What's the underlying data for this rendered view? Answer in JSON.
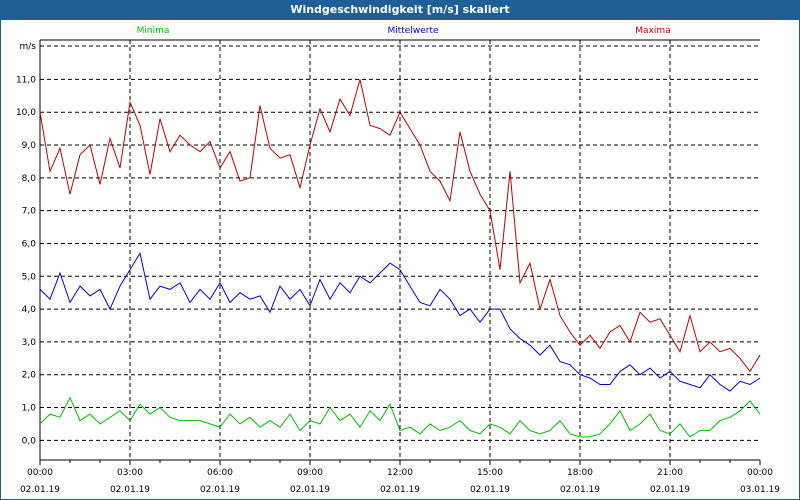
{
  "window": {
    "title": "Windgeschwindigkeit [m/s] skaliert"
  },
  "chart_data": {
    "type": "line",
    "title": "Windgeschwindigkeit [m/s] skaliert",
    "ylabel": "m/s",
    "ylim": [
      -0.6,
      12.2
    ],
    "yticks": [
      0,
      1,
      2,
      3,
      4,
      5,
      6,
      7,
      8,
      9,
      10,
      11
    ],
    "ytick_labels": [
      "0,0",
      "1,0",
      "2,0",
      "3,0",
      "4,0",
      "5,0",
      "6,0",
      "7,0",
      "8,0",
      "9,0",
      "10,0",
      "11,0"
    ],
    "xlim_hours": [
      0,
      24
    ],
    "xticks": [
      {
        "time": "00:00",
        "date": "02.01.19"
      },
      {
        "time": "03:00",
        "date": "02.01.19"
      },
      {
        "time": "06:00",
        "date": "02.01.19"
      },
      {
        "time": "09:00",
        "date": "02.01.19"
      },
      {
        "time": "12:00",
        "date": "02.01.19"
      },
      {
        "time": "15:00",
        "date": "02.01.19"
      },
      {
        "time": "18:00",
        "date": "02.01.19"
      },
      {
        "time": "21:00",
        "date": "02.01.19"
      },
      {
        "time": "00:00",
        "date": "03.01.19"
      }
    ],
    "grid": true,
    "series": [
      {
        "name": "Minima",
        "color": "#00c000",
        "values": [
          0.5,
          0.8,
          0.7,
          1.3,
          0.6,
          0.8,
          0.5,
          0.7,
          0.9,
          0.6,
          1.1,
          0.8,
          1.0,
          0.7,
          0.6,
          0.6,
          0.6,
          0.5,
          0.4,
          0.8,
          0.5,
          0.7,
          0.4,
          0.6,
          0.4,
          0.8,
          0.3,
          0.6,
          0.5,
          1.0,
          0.6,
          0.8,
          0.4,
          0.9,
          0.6,
          1.1,
          0.3,
          0.4,
          0.2,
          0.5,
          0.3,
          0.4,
          0.6,
          0.3,
          0.2,
          0.5,
          0.4,
          0.2,
          0.6,
          0.3,
          0.2,
          0.3,
          0.6,
          0.2,
          0.1,
          0.1,
          0.2,
          0.5,
          0.9,
          0.3,
          0.5,
          0.8,
          0.3,
          0.2,
          0.5,
          0.1,
          0.3,
          0.3,
          0.6,
          0.7,
          0.9,
          1.2,
          0.8
        ]
      },
      {
        "name": "Mittelwerte",
        "color": "#0000e0",
        "values": [
          4.6,
          4.3,
          5.1,
          4.2,
          4.7,
          4.4,
          4.6,
          4.0,
          4.7,
          5.2,
          5.7,
          4.3,
          4.7,
          4.6,
          4.8,
          4.2,
          4.6,
          4.3,
          4.8,
          4.2,
          4.5,
          4.3,
          4.4,
          3.9,
          4.7,
          4.3,
          4.6,
          4.1,
          4.9,
          4.3,
          4.8,
          4.5,
          5.0,
          4.8,
          5.1,
          5.4,
          5.2,
          4.7,
          4.2,
          4.1,
          4.6,
          4.3,
          3.8,
          4.0,
          3.6,
          4.0,
          4.0,
          3.4,
          3.1,
          2.9,
          2.6,
          2.9,
          2.4,
          2.3,
          2.0,
          1.9,
          1.7,
          1.7,
          2.1,
          2.3,
          2.0,
          2.2,
          1.9,
          2.1,
          1.8,
          1.7,
          1.6,
          2.0,
          1.7,
          1.5,
          1.8,
          1.7,
          1.9
        ]
      },
      {
        "name": "Maxima",
        "color": "#c00000",
        "values": [
          10.0,
          8.2,
          8.9,
          7.5,
          8.7,
          9.0,
          7.8,
          9.2,
          8.3,
          10.3,
          9.6,
          8.1,
          9.8,
          8.8,
          9.3,
          9.0,
          8.8,
          9.1,
          8.3,
          8.8,
          7.9,
          8.0,
          10.2,
          8.9,
          8.6,
          8.7,
          7.7,
          9.0,
          10.1,
          9.4,
          10.4,
          9.9,
          11.0,
          9.6,
          9.5,
          9.3,
          10.0,
          9.5,
          9.0,
          8.2,
          7.9,
          7.3,
          9.4,
          8.2,
          7.5,
          7.0,
          5.2,
          8.2,
          4.8,
          5.4,
          4.0,
          4.9,
          3.8,
          3.3,
          2.9,
          3.2,
          2.8,
          3.3,
          3.5,
          3.0,
          3.9,
          3.6,
          3.7,
          3.2,
          2.7,
          3.8,
          2.7,
          3.0,
          2.7,
          2.8,
          2.5,
          2.1,
          2.6
        ]
      }
    ]
  }
}
